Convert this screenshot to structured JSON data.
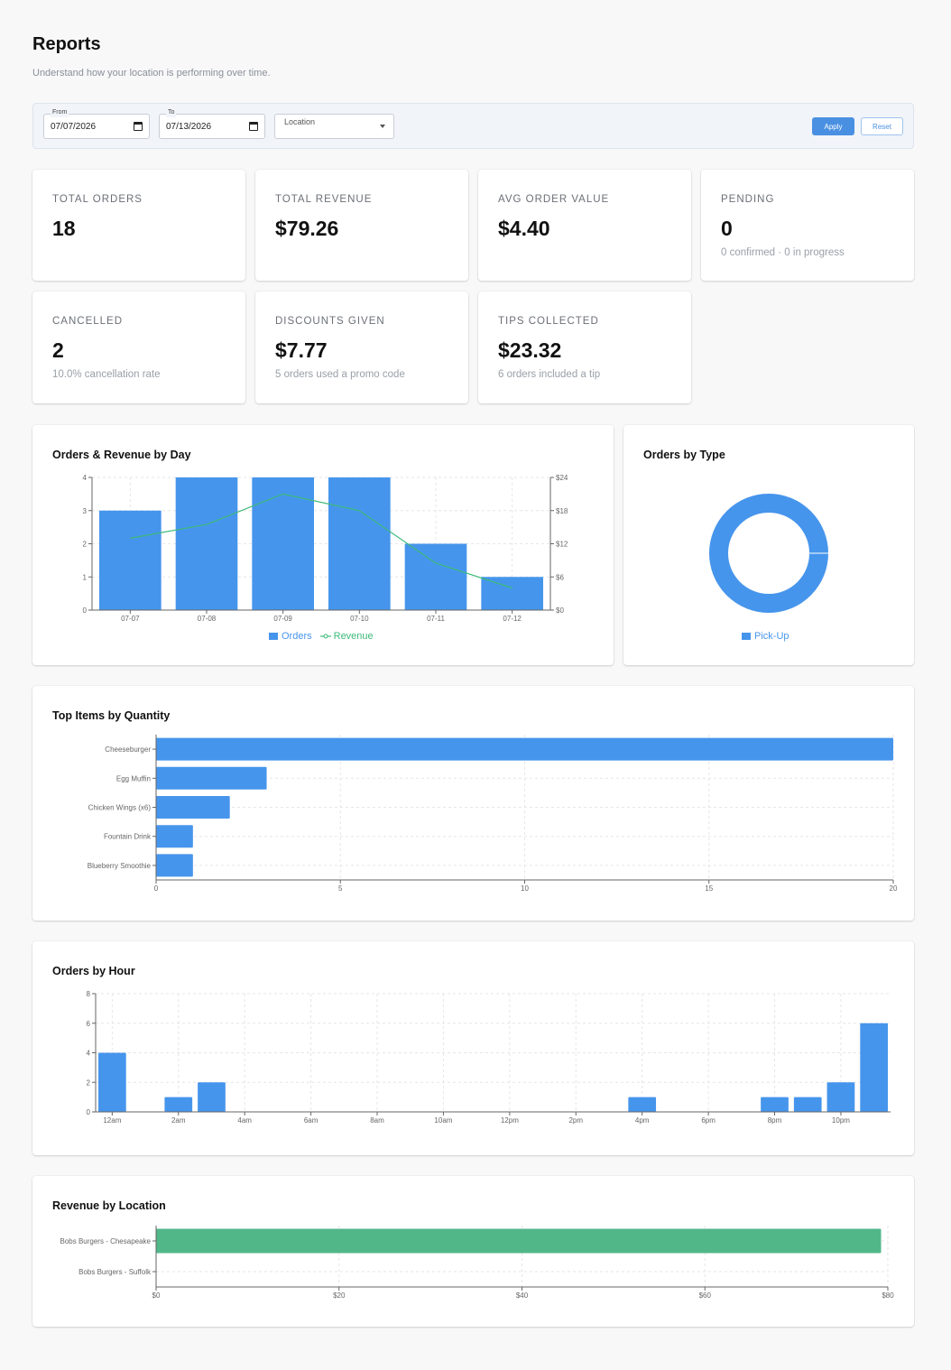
{
  "page": {
    "title": "Reports",
    "subtitle": "Understand how your location is performing over time."
  },
  "filters": {
    "from_label": "From",
    "from_value": "07/07/2026",
    "to_label": "To",
    "to_value": "07/13/2026",
    "location_label": "Location",
    "apply_label": "Apply",
    "reset_label": "Reset"
  },
  "stats": [
    {
      "label": "TOTAL ORDERS",
      "value": "18",
      "sub": ""
    },
    {
      "label": "TOTAL REVENUE",
      "value": "$79.26",
      "sub": ""
    },
    {
      "label": "AVG ORDER VALUE",
      "value": "$4.40",
      "sub": ""
    },
    {
      "label": "PENDING",
      "value": "0",
      "sub": "0 confirmed · 0 in progress"
    },
    {
      "label": "CANCELLED",
      "value": "2",
      "sub": "10.0% cancellation rate"
    },
    {
      "label": "DISCOUNTS GIVEN",
      "value": "$7.77",
      "sub": "5 orders used a promo code"
    },
    {
      "label": "TIPS COLLECTED",
      "value": "$23.32",
      "sub": "6 orders included a tip"
    }
  ],
  "colors": {
    "primary": "#4695ec",
    "green": "#52b788",
    "line": "#3dba7a"
  },
  "chart_data": [
    {
      "title": "Orders & Revenue by Day",
      "type": "bar",
      "categories": [
        "07-07",
        "07-08",
        "07-09",
        "07-10",
        "07-11",
        "07-12"
      ],
      "series": [
        {
          "name": "Orders",
          "type": "bar",
          "values": [
            3,
            4,
            4,
            4,
            2,
            1
          ]
        },
        {
          "name": "Revenue",
          "type": "line",
          "values": [
            13,
            15.5,
            21,
            18,
            8.5,
            4
          ]
        }
      ],
      "ylim_left": [
        0,
        4
      ],
      "yticks_left": [
        "0",
        "1",
        "2",
        "3",
        "4"
      ],
      "ylim_right": [
        0,
        24
      ],
      "yticks_right": [
        "$0",
        "$6",
        "$12",
        "$18",
        "$24"
      ],
      "grid": true,
      "legend": "bottom"
    },
    {
      "title": "Orders by Type",
      "type": "pie",
      "categories": [
        "Pick-Up"
      ],
      "values": [
        18
      ],
      "donut": true,
      "legend": "bottom"
    },
    {
      "title": "Top Items by Quantity",
      "type": "bar",
      "orientation": "horizontal",
      "categories": [
        "Cheeseburger",
        "Egg Muffin",
        "Chicken Wings (x6)",
        "Fountain Drink",
        "Blueberry Smoothie"
      ],
      "values": [
        20,
        3,
        2,
        1,
        1
      ],
      "xlim": [
        0,
        20
      ],
      "xticks": [
        "0",
        "5",
        "10",
        "15",
        "20"
      ],
      "grid": true
    },
    {
      "title": "Orders by Hour",
      "type": "bar",
      "categories": [
        "12am",
        "1am",
        "2am",
        "3am",
        "4am",
        "5am",
        "6am",
        "7am",
        "8am",
        "9am",
        "10am",
        "11am",
        "12pm",
        "1pm",
        "2pm",
        "3pm",
        "4pm",
        "5pm",
        "6pm",
        "7pm",
        "8pm",
        "9pm",
        "10pm",
        "11pm"
      ],
      "values": [
        4,
        0,
        1,
        2,
        0,
        0,
        0,
        0,
        0,
        0,
        0,
        0,
        0,
        0,
        0,
        0,
        1,
        0,
        0,
        0,
        1,
        1,
        2,
        6
      ],
      "xtick_labels": [
        "12am",
        "2am",
        "4am",
        "6am",
        "8am",
        "10am",
        "12pm",
        "2pm",
        "4pm",
        "6pm",
        "8pm",
        "10pm"
      ],
      "ylim": [
        0,
        8
      ],
      "yticks": [
        "0",
        "2",
        "4",
        "6",
        "8"
      ],
      "grid": true
    },
    {
      "title": "Revenue by Location",
      "type": "bar",
      "orientation": "horizontal",
      "categories": [
        "Bobs Burgers - Chesapeake",
        "Bobs Burgers - Suffolk"
      ],
      "values": [
        79.26,
        0
      ],
      "xlim": [
        0,
        80
      ],
      "xticks": [
        "$0",
        "$20",
        "$40",
        "$60",
        "$80"
      ],
      "grid": true
    }
  ]
}
